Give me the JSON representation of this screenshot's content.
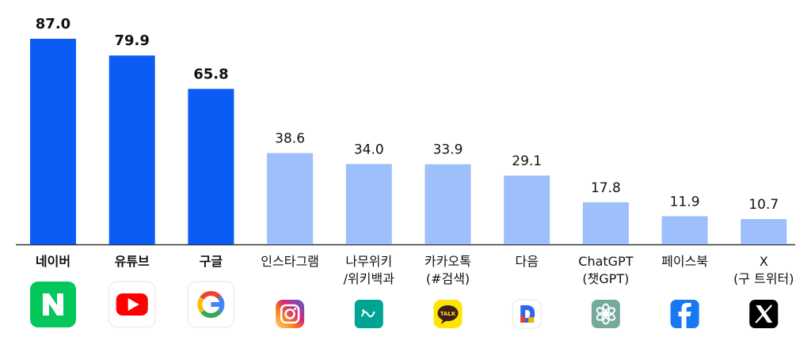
{
  "chart_data": {
    "type": "bar",
    "categories": [
      [
        "네이버"
      ],
      [
        "유튜브"
      ],
      [
        "구글"
      ],
      [
        "인스타그램"
      ],
      [
        "나무위키",
        "/위키백과"
      ],
      [
        "카카오톡",
        "(#검색)"
      ],
      [
        "다음"
      ],
      [
        "ChatGPT",
        "(챗GPT)"
      ],
      [
        "페이스북"
      ],
      [
        "X",
        "(구 트위터)"
      ]
    ],
    "values": [
      87.0,
      79.9,
      65.8,
      38.6,
      34.0,
      33.9,
      29.1,
      17.8,
      11.9,
      10.7
    ],
    "value_labels": [
      "87.0",
      "79.9",
      "65.8",
      "38.6",
      "34.0",
      "33.9",
      "29.1",
      "17.8",
      "11.9",
      "10.7"
    ],
    "highlighted_count": 3,
    "ylim": [
      0,
      87.0
    ],
    "grid": false,
    "title": "",
    "xlabel": "",
    "ylabel": "",
    "icons": [
      "naver-icon",
      "youtube-icon",
      "google-icon",
      "instagram-icon",
      "namuwiki-icon",
      "kakaotalk-icon",
      "daum-icon",
      "chatgpt-icon",
      "facebook-icon",
      "x-icon"
    ],
    "icon_texts": {
      "kakaotalk-icon": "TALK"
    },
    "colors": {
      "highlight_bar": "#0A5CF5",
      "bar": "#9DBFFB",
      "baseline": "#333333",
      "naver": "#03C75A",
      "youtube": "#FF0000",
      "google_blue": "#4285F4",
      "google_red": "#EA4335",
      "google_yellow": "#FBBC05",
      "google_green": "#34A853",
      "namuwiki": "#00A495",
      "kakaotalk": "#FEE500",
      "daum": "#E9B700",
      "chatgpt": "#74AA9C",
      "facebook": "#1877F2",
      "x": "#000000"
    }
  }
}
